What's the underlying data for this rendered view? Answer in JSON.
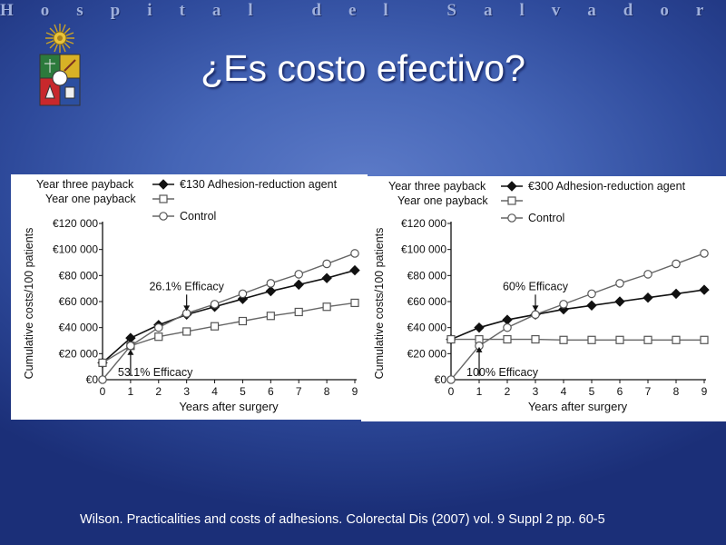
{
  "slide": {
    "hospital_name": "Hospital del Salvador",
    "title": "¿Es costo efectivo?",
    "citation": "Wilson. Practicalities and costs of adhesions. Colorectal Dis (2007) vol. 9 Suppl 2 pp. 60-5"
  },
  "colors": {
    "background": "#3f5db0",
    "text": "#ffffff",
    "chart_ink": "#111111"
  },
  "chart_data": [
    {
      "type": "line",
      "xlabel": "Years after surgery",
      "ylabel": "Cumulative costs/100 patients",
      "ylim": [
        0,
        120000
      ],
      "yticks": [
        0,
        20000,
        40000,
        60000,
        80000,
        100000,
        120000
      ],
      "ytick_labels": [
        "€0",
        "€20 000",
        "€40 000",
        "€60 000",
        "€80 000",
        "€100 000",
        "€120 000"
      ],
      "x": [
        0,
        1,
        2,
        3,
        4,
        5,
        6,
        7,
        8,
        9
      ],
      "legend_position": "top",
      "legend_side_labels": [
        "Year three payback",
        "Year one payback"
      ],
      "series": [
        {
          "name": "€130 Adhesion-reduction agent",
          "marker": "filled-diamond",
          "values": [
            13000,
            32000,
            42000,
            50000,
            56000,
            62000,
            68000,
            73000,
            78000,
            84000
          ]
        },
        {
          "name": "",
          "marker": "open-square",
          "values": [
            13000,
            26000,
            33000,
            37000,
            41000,
            45000,
            49000,
            52000,
            56000,
            59000
          ]
        },
        {
          "name": "Control",
          "marker": "open-circle",
          "values": [
            0,
            26000,
            40000,
            51000,
            58000,
            66000,
            74000,
            81000,
            89000,
            97000
          ]
        }
      ],
      "annotations": [
        {
          "text": "26.1% Efficacy",
          "x": 3,
          "y": 50000,
          "placement": "above"
        },
        {
          "text": "53.1% Efficacy",
          "x": 1,
          "y": 26000,
          "placement": "below"
        }
      ]
    },
    {
      "type": "line",
      "xlabel": "Years after surgery",
      "ylabel": "Cumulative costs/100 patients",
      "ylim": [
        0,
        120000
      ],
      "yticks": [
        0,
        20000,
        40000,
        60000,
        80000,
        100000,
        120000
      ],
      "ytick_labels": [
        "€0",
        "€20 000",
        "€40 000",
        "€60 000",
        "€80 000",
        "€100 000",
        "€120 000"
      ],
      "x": [
        0,
        1,
        2,
        3,
        4,
        5,
        6,
        7,
        8,
        9
      ],
      "legend_position": "top",
      "legend_side_labels": [
        "Year three payback",
        "Year one payback"
      ],
      "series": [
        {
          "name": "€300 Adhesion-reduction agent",
          "marker": "filled-diamond",
          "values": [
            31000,
            40000,
            46000,
            50000,
            54000,
            57000,
            60000,
            63000,
            66000,
            69000
          ]
        },
        {
          "name": "",
          "marker": "open-square",
          "values": [
            31000,
            31000,
            31000,
            31000,
            30500,
            30500,
            30500,
            30500,
            30500,
            30500
          ]
        },
        {
          "name": "Control",
          "marker": "open-circle",
          "values": [
            0,
            26000,
            40000,
            50000,
            58000,
            66000,
            74000,
            81000,
            89000,
            97000
          ]
        }
      ],
      "annotations": [
        {
          "text": "60% Efficacy",
          "x": 3,
          "y": 50000,
          "placement": "above"
        },
        {
          "text": "100% Efficacy",
          "x": 1,
          "y": 28000,
          "placement": "below"
        }
      ]
    }
  ]
}
